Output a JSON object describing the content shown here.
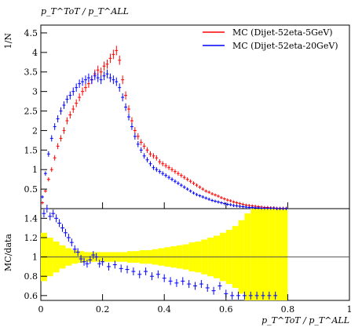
{
  "chart_data": [
    {
      "type": "line",
      "panel": "main",
      "title": "",
      "ylabel": "1/N",
      "xlim": [
        0,
        1
      ],
      "ylim": [
        0,
        4.7
      ],
      "yticks": [
        "0.5",
        "1",
        "1.5",
        "2",
        "2.5",
        "3",
        "3.5",
        "4",
        "4.5"
      ],
      "top_label": "p_T^ToT / p_T^ALL",
      "legend_position": "top-right",
      "series": [
        {
          "name": "MC (Dijet-52eta-5GeV)",
          "color": "#ff0000",
          "x": [
            0.005,
            0.015,
            0.025,
            0.035,
            0.045,
            0.055,
            0.065,
            0.075,
            0.085,
            0.095,
            0.105,
            0.115,
            0.125,
            0.135,
            0.145,
            0.155,
            0.165,
            0.175,
            0.185,
            0.195,
            0.205,
            0.215,
            0.225,
            0.235,
            0.245,
            0.255,
            0.265,
            0.275,
            0.285,
            0.295,
            0.305,
            0.315,
            0.325,
            0.335,
            0.345,
            0.355,
            0.365,
            0.375,
            0.385,
            0.395,
            0.405,
            0.415,
            0.425,
            0.435,
            0.445,
            0.455,
            0.465,
            0.475,
            0.485,
            0.495,
            0.505,
            0.515,
            0.525,
            0.535,
            0.545,
            0.555,
            0.565,
            0.575,
            0.585,
            0.595,
            0.605,
            0.615,
            0.625,
            0.635,
            0.645,
            0.655,
            0.665,
            0.675,
            0.685,
            0.695,
            0.705,
            0.715,
            0.725,
            0.735,
            0.745,
            0.755,
            0.765,
            0.775,
            0.785,
            0.795
          ],
          "y": [
            0.15,
            0.45,
            0.75,
            1.0,
            1.3,
            1.6,
            1.8,
            2.0,
            2.25,
            2.4,
            2.55,
            2.7,
            2.85,
            3.0,
            3.1,
            3.2,
            3.3,
            3.45,
            3.55,
            3.5,
            3.65,
            3.7,
            3.85,
            3.95,
            4.05,
            3.8,
            3.3,
            2.9,
            2.55,
            2.25,
            2.0,
            1.85,
            1.7,
            1.6,
            1.5,
            1.4,
            1.35,
            1.3,
            1.2,
            1.15,
            1.1,
            1.05,
            1.0,
            0.95,
            0.9,
            0.85,
            0.8,
            0.75,
            0.7,
            0.65,
            0.6,
            0.55,
            0.5,
            0.45,
            0.42,
            0.38,
            0.35,
            0.32,
            0.28,
            0.25,
            0.22,
            0.2,
            0.17,
            0.15,
            0.13,
            0.11,
            0.09,
            0.08,
            0.07,
            0.06,
            0.05,
            0.04,
            0.03,
            0.03,
            0.02,
            0.02,
            0.01,
            0.01,
            0.01,
            0.01
          ]
        },
        {
          "name": "MC (Dijet-52eta-20GeV)",
          "color": "#0000ff",
          "x": [
            0.005,
            0.015,
            0.025,
            0.035,
            0.045,
            0.055,
            0.065,
            0.075,
            0.085,
            0.095,
            0.105,
            0.115,
            0.125,
            0.135,
            0.145,
            0.155,
            0.165,
            0.175,
            0.185,
            0.195,
            0.205,
            0.215,
            0.225,
            0.235,
            0.245,
            0.255,
            0.265,
            0.275,
            0.285,
            0.295,
            0.305,
            0.315,
            0.325,
            0.335,
            0.345,
            0.355,
            0.365,
            0.375,
            0.385,
            0.395,
            0.405,
            0.415,
            0.425,
            0.435,
            0.445,
            0.455,
            0.465,
            0.475,
            0.485,
            0.495,
            0.505,
            0.515,
            0.525,
            0.535,
            0.545,
            0.555,
            0.565,
            0.575,
            0.585,
            0.595,
            0.605,
            0.615,
            0.625,
            0.635,
            0.645,
            0.655,
            0.665,
            0.675,
            0.685,
            0.695,
            0.705,
            0.715,
            0.725,
            0.735,
            0.745,
            0.755,
            0.765,
            0.775,
            0.785,
            0.795
          ],
          "y": [
            0.3,
            0.9,
            1.4,
            1.8,
            2.1,
            2.3,
            2.5,
            2.65,
            2.8,
            2.9,
            3.0,
            3.1,
            3.2,
            3.25,
            3.3,
            3.35,
            3.3,
            3.4,
            3.35,
            3.3,
            3.4,
            3.45,
            3.35,
            3.3,
            3.25,
            3.1,
            2.85,
            2.6,
            2.35,
            2.1,
            1.85,
            1.65,
            1.5,
            1.35,
            1.25,
            1.15,
            1.05,
            1.0,
            0.95,
            0.9,
            0.85,
            0.8,
            0.75,
            0.7,
            0.65,
            0.6,
            0.55,
            0.5,
            0.45,
            0.4,
            0.36,
            0.33,
            0.3,
            0.27,
            0.24,
            0.21,
            0.19,
            0.17,
            0.15,
            0.13,
            0.11,
            0.1,
            0.08,
            0.07,
            0.06,
            0.05,
            0.04,
            0.03,
            0.03,
            0.02,
            0.02,
            0.01,
            0.01,
            0.01,
            0.01,
            0.01,
            0.0,
            0.0,
            0.0,
            0.0
          ]
        }
      ]
    },
    {
      "type": "line",
      "panel": "ratio",
      "ylabel": "MC/data",
      "xlabel": "p_T^ToT / p_T^ALL",
      "xlim": [
        0,
        1
      ],
      "ylim": [
        0.55,
        1.5
      ],
      "xticks": [
        "0",
        "0.2",
        "0.4",
        "0.6",
        "0.8",
        "1"
      ],
      "yticks": [
        "0.6",
        "0.8",
        "1",
        "1.2",
        "1.4"
      ],
      "reference_line": 1,
      "band_color": "#ffff00",
      "band": {
        "x": [
          0.0,
          0.02,
          0.04,
          0.06,
          0.08,
          0.1,
          0.12,
          0.14,
          0.16,
          0.18,
          0.2,
          0.22,
          0.24,
          0.26,
          0.28,
          0.3,
          0.32,
          0.34,
          0.36,
          0.38,
          0.4,
          0.42,
          0.44,
          0.46,
          0.48,
          0.5,
          0.52,
          0.54,
          0.56,
          0.58,
          0.6,
          0.62,
          0.64,
          0.66,
          0.68,
          0.7,
          0.72,
          0.74,
          0.76,
          0.78,
          0.8
        ],
        "half_width": [
          0.25,
          0.2,
          0.16,
          0.12,
          0.09,
          0.07,
          0.06,
          0.05,
          0.05,
          0.05,
          0.05,
          0.05,
          0.05,
          0.05,
          0.06,
          0.06,
          0.07,
          0.07,
          0.08,
          0.09,
          0.1,
          0.11,
          0.12,
          0.13,
          0.15,
          0.16,
          0.18,
          0.2,
          0.22,
          0.25,
          0.28,
          0.32,
          0.38,
          0.45,
          0.55,
          0.6,
          0.6,
          0.6,
          0.6,
          0.6,
          0.6
        ]
      },
      "series": [
        {
          "name": "MC (Dijet-52eta-20GeV)",
          "color": "#0000ff",
          "x": [
            0.01,
            0.02,
            0.03,
            0.04,
            0.05,
            0.06,
            0.07,
            0.08,
            0.09,
            0.1,
            0.11,
            0.12,
            0.13,
            0.14,
            0.15,
            0.16,
            0.17,
            0.18,
            0.19,
            0.2,
            0.22,
            0.24,
            0.26,
            0.28,
            0.3,
            0.32,
            0.34,
            0.36,
            0.38,
            0.4,
            0.42,
            0.44,
            0.46,
            0.48,
            0.5,
            0.52,
            0.54,
            0.56,
            0.58,
            0.6,
            0.62,
            0.64,
            0.66,
            0.68,
            0.7,
            0.72,
            0.74,
            0.76
          ],
          "y": [
            1.45,
            1.5,
            1.42,
            1.45,
            1.4,
            1.35,
            1.3,
            1.25,
            1.2,
            1.15,
            1.08,
            1.05,
            0.98,
            0.95,
            0.93,
            0.97,
            1.02,
            1.0,
            0.93,
            0.95,
            0.9,
            0.92,
            0.88,
            0.87,
            0.85,
            0.82,
            0.85,
            0.8,
            0.82,
            0.78,
            0.75,
            0.73,
            0.75,
            0.72,
            0.7,
            0.72,
            0.68,
            0.65,
            0.7,
            0.62,
            0.6,
            0.6,
            0.6,
            0.6,
            0.6,
            0.6,
            0.6,
            0.6
          ]
        }
      ]
    }
  ]
}
